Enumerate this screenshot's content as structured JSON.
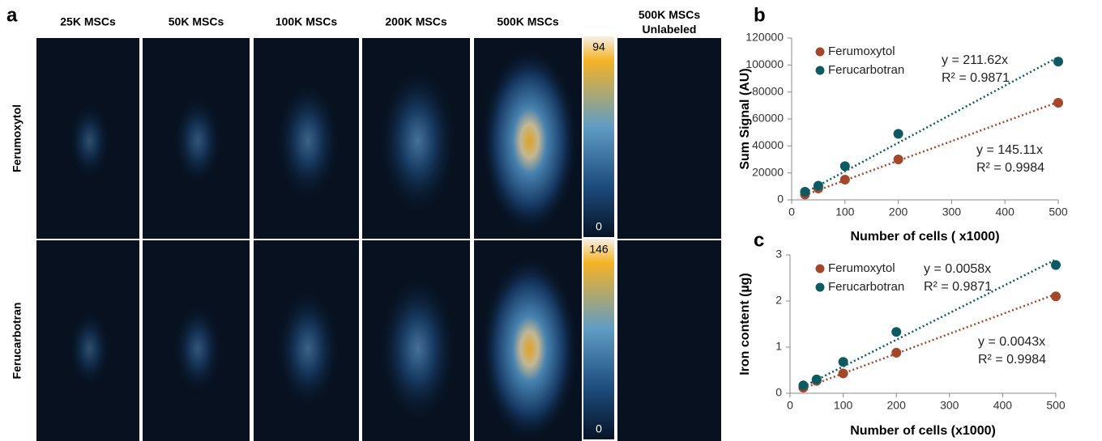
{
  "panel_labels": [
    "a",
    "b",
    "c"
  ],
  "image_panel": {
    "columns": [
      "25K MSCs",
      "50K MSCs",
      "100K MSCs",
      "200K MSCs",
      "500K MSCs",
      "500K MSCs Unlabeled"
    ],
    "rows": [
      "Ferumoxytol",
      "Ferucarbotran"
    ],
    "colorbars": [
      {
        "max": 94,
        "min": 0
      },
      {
        "max": 146,
        "min": 0
      }
    ]
  },
  "chart_data": [
    {
      "type": "scatter",
      "x_label": "Number of cells ( x1000)",
      "y_label": "Sum Signal (AU)",
      "x": [
        25,
        50,
        100,
        200,
        500
      ],
      "xlim": [
        0,
        500
      ],
      "xticks": [
        0,
        100,
        200,
        300,
        400,
        500
      ],
      "ylim": [
        0,
        120000
      ],
      "yticks": [
        0,
        20000,
        40000,
        60000,
        80000,
        100000,
        120000
      ],
      "legend": "upper left",
      "series": [
        {
          "name": "Ferumoxytol",
          "color": "#a3472a",
          "values": [
            4000,
            8500,
            15000,
            30000,
            72000
          ],
          "trend": {
            "label": "y = 145.11x",
            "slope": 145.11,
            "r2_label": "R² = 0.9984"
          }
        },
        {
          "name": "Ferucarbotran",
          "color": "#0e5a63",
          "values": [
            6000,
            10500,
            25000,
            49000,
            102500
          ],
          "trend": {
            "label": "y = 211.62x",
            "slope": 211.62,
            "r2_label": "R² = 0.9871"
          }
        }
      ]
    },
    {
      "type": "scatter",
      "x_label": "Number of cells (x1000)",
      "y_label": "Iron content (µg)",
      "x": [
        25,
        50,
        100,
        200,
        500
      ],
      "xlim": [
        0,
        500
      ],
      "xticks": [
        0,
        100,
        200,
        300,
        400,
        500
      ],
      "ylim": [
        0,
        3
      ],
      "yticks": [
        0,
        1,
        2,
        3
      ],
      "legend": "upper left",
      "series": [
        {
          "name": "Ferumoxytol",
          "color": "#a3472a",
          "values": [
            0.12,
            0.27,
            0.43,
            0.88,
            2.1
          ],
          "trend": {
            "label": "y = 0.0043x",
            "slope": 0.0043,
            "r2_label": "R² = 0.9984"
          }
        },
        {
          "name": "Ferucarbotran",
          "color": "#0e5a63",
          "values": [
            0.17,
            0.3,
            0.68,
            1.33,
            2.78
          ],
          "trend": {
            "label": "y = 0.0058x",
            "slope": 0.0058,
            "r2_label": "R² = 0.9871"
          }
        }
      ]
    }
  ]
}
